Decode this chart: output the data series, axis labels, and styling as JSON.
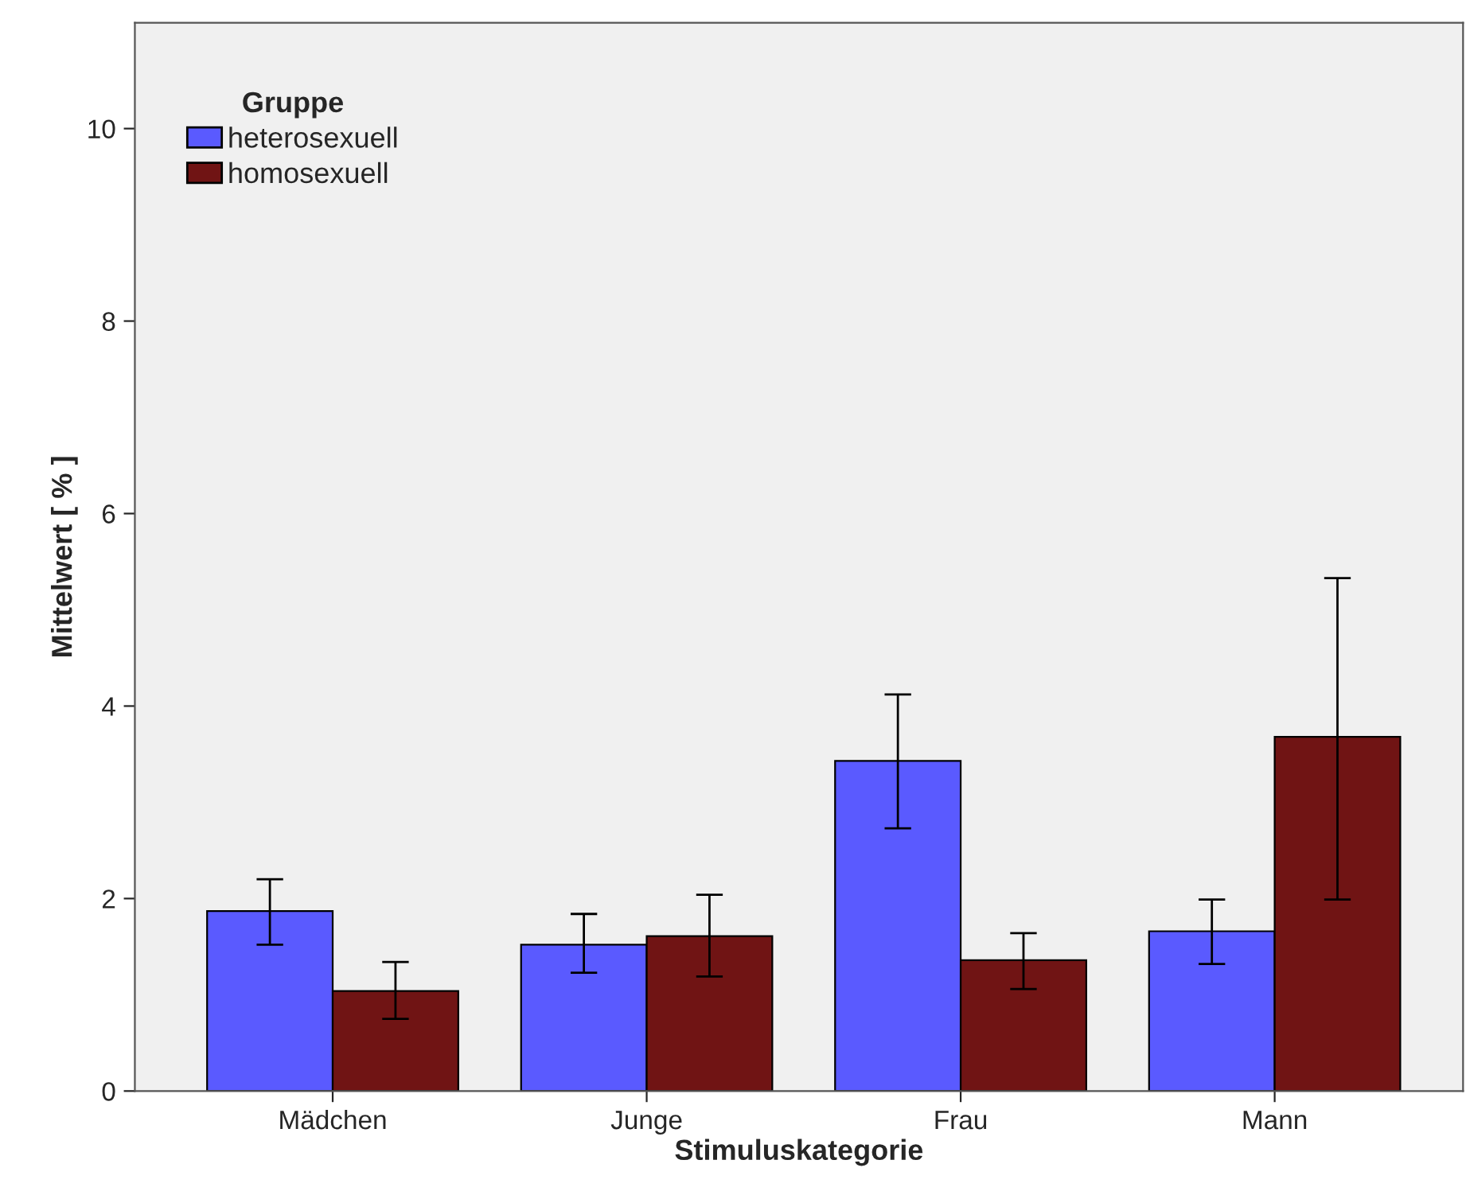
{
  "chart_data": {
    "type": "bar",
    "xlabel": "Stimuluskategorie",
    "ylabel": "Mittelwert [ % ]",
    "legend_title": "Gruppe",
    "categories": [
      "Mädchen",
      "Junge",
      "Frau",
      "Mann"
    ],
    "series": [
      {
        "name": "heterosexuell",
        "color": "#5a5aff",
        "values": [
          1.87,
          1.52,
          3.43,
          1.66
        ],
        "errors": [
          [
            1.52,
            2.2
          ],
          [
            1.23,
            1.84
          ],
          [
            2.73,
            4.12
          ],
          [
            1.32,
            1.99
          ]
        ]
      },
      {
        "name": "homosexuell",
        "color": "#701414",
        "values": [
          1.04,
          1.61,
          1.36,
          3.68
        ],
        "errors": [
          [
            0.75,
            1.34
          ],
          [
            1.19,
            2.04
          ],
          [
            1.06,
            1.64
          ],
          [
            1.99,
            5.33
          ]
        ]
      }
    ],
    "ylim": [
      0,
      11.1
    ],
    "yticks": [
      0,
      2,
      4,
      6,
      8,
      10
    ],
    "grid": false,
    "legend": "top left"
  }
}
